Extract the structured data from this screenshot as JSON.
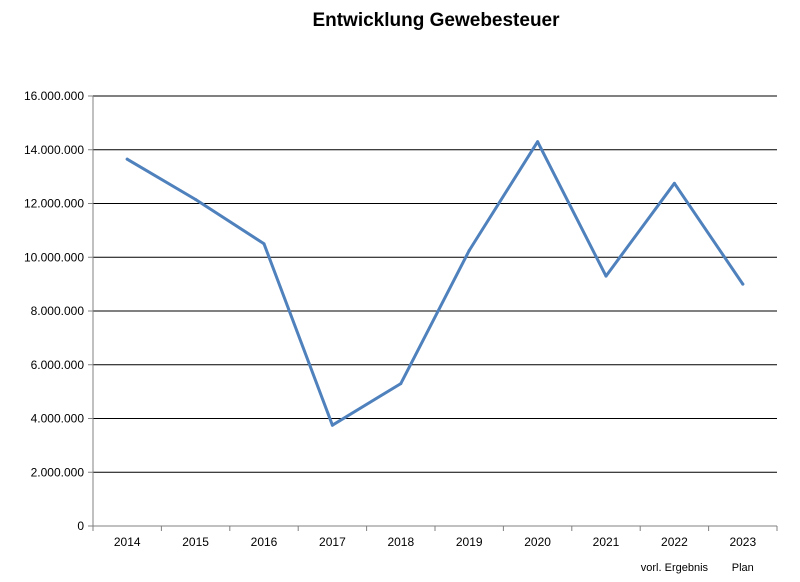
{
  "chart_data": {
    "type": "line",
    "title": "Entwicklung Gewebesteuer",
    "xlabel": "",
    "ylabel": "",
    "categories": [
      "2014",
      "2015",
      "2016",
      "2017",
      "2018",
      "2019",
      "2020",
      "2021",
      "2022",
      "2023"
    ],
    "category_notes": [
      {
        "category": "2022",
        "text": "vorl. Ergebnis"
      },
      {
        "category": "2023",
        "text": "Plan"
      }
    ],
    "series": [
      {
        "values": [
          13650000,
          12150000,
          10500000,
          3750000,
          5300000,
          10250000,
          14300000,
          9300000,
          12750000,
          9000000
        ]
      }
    ],
    "ylim": [
      0,
      16000000
    ],
    "y_ticks": [
      0,
      2000000,
      4000000,
      6000000,
      8000000,
      10000000,
      12000000,
      14000000,
      16000000
    ],
    "y_tick_labels": [
      "0",
      "2.000.000",
      "4.000.000",
      "6.000.000",
      "8.000.000",
      "10.000.000",
      "12.000.000",
      "14.000.000",
      "16.000.000"
    ],
    "grid": "horizontal",
    "legend": "none",
    "colors": {
      "line": "#4F81BD",
      "grid": "#000000",
      "axis": "#808080"
    }
  }
}
